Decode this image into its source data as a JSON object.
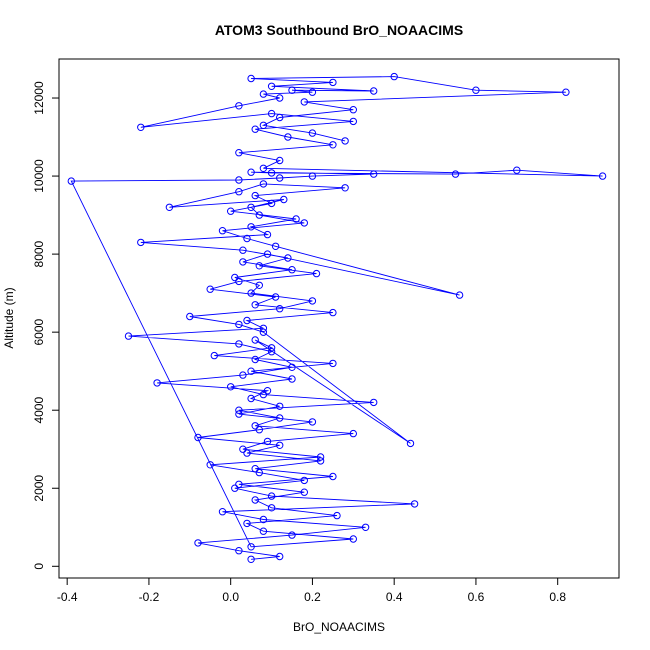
{
  "chart_data": {
    "type": "line",
    "title": "ATOM3 Southbound BrO_NOAACIMS",
    "xlabel": "BrO_NOAACIMS",
    "ylabel": "Altitude (m)",
    "xlim": [
      -0.42,
      0.95
    ],
    "ylim": [
      -300,
      13000
    ],
    "x_ticks": [
      -0.4,
      -0.2,
      0.0,
      0.2,
      0.4,
      0.6,
      0.8
    ],
    "x_tick_labels": [
      "-0.4",
      "-0.2",
      "0.0",
      "0.2",
      "0.4",
      "0.6",
      "0.8"
    ],
    "y_ticks": [
      0,
      2000,
      4000,
      6000,
      8000,
      10000,
      12000
    ],
    "y_tick_labels": [
      "0",
      "2000",
      "4000",
      "6000",
      "8000",
      "10000",
      "12000"
    ],
    "grid": false,
    "legend": "none",
    "markers": "open-circle",
    "color": "#0000ff",
    "series": [
      {
        "x": [
          0.05,
          0.12,
          0.02,
          -0.08,
          0.15,
          0.33,
          0.08,
          -0.02,
          0.45,
          0.1,
          0.01,
          0.18,
          0.07,
          -0.05,
          0.22,
          0.03,
          0.09,
          0.3,
          0.06,
          0.12,
          0.02,
          0.35,
          0.08,
          0.0,
          0.15,
          0.05,
          0.25,
          -0.04,
          0.1,
          0.06,
          0.44,
          0.08,
          0.02,
          -0.1,
          0.12,
          0.2,
          0.05,
          0.07,
          0.01,
          0.15,
          0.03,
          0.09,
          0.56,
          0.11,
          0.04,
          -0.02,
          0.18,
          0.07,
          0.05,
          0.13,
          -0.15,
          0.02,
          0.08,
          0.28,
          0.06,
          0.1,
          0.0,
          0.16,
          0.05,
          0.09,
          -0.22,
          0.03,
          0.14,
          0.07,
          0.21,
          0.02,
          -0.05,
          0.11,
          0.06,
          0.25,
          0.04,
          0.08,
          -0.25,
          0.02,
          0.1,
          0.06,
          0.15,
          0.03,
          -0.18,
          0.09,
          0.05,
          0.12,
          0.02,
          0.2,
          0.07,
          -0.08,
          0.12,
          0.04,
          0.22,
          0.06,
          0.25,
          0.02,
          0.18,
          0.06,
          0.1,
          0.26,
          0.04,
          0.08,
          0.3,
          0.05,
          -0.39,
          0.02,
          0.12,
          0.2,
          0.35,
          0.05,
          0.1,
          0.55,
          0.7,
          0.91,
          0.08,
          0.12,
          0.02,
          0.25,
          0.14,
          0.06,
          0.3,
          0.1,
          -0.22,
          0.02,
          0.12,
          0.08,
          0.2,
          0.15,
          0.35,
          0.1,
          0.25,
          0.05,
          0.4,
          0.6,
          0.82,
          0.18,
          0.3,
          0.12,
          0.08,
          0.2,
          0.28
        ],
        "y": [
          180,
          250,
          400,
          600,
          800,
          1000,
          1200,
          1400,
          1600,
          1800,
          2000,
          2200,
          2400,
          2600,
          2800,
          3000,
          3200,
          3400,
          3600,
          3800,
          4000,
          4200,
          4400,
          4600,
          4800,
          5000,
          5200,
          5400,
          5600,
          5800,
          3150,
          6000,
          6200,
          6400,
          6600,
          6800,
          7000,
          7200,
          7400,
          7600,
          7800,
          8000,
          6950,
          8200,
          8400,
          8600,
          8800,
          9000,
          9200,
          9400,
          9200,
          9600,
          9800,
          9700,
          9500,
          9300,
          9100,
          8900,
          8700,
          8500,
          8300,
          8100,
          7900,
          7700,
          7500,
          7300,
          7100,
          6900,
          6700,
          6500,
          6300,
          6100,
          5900,
          5700,
          5500,
          5300,
          5100,
          4900,
          4700,
          4500,
          4300,
          4100,
          3900,
          3700,
          3500,
          3300,
          3100,
          2900,
          2700,
          2500,
          2300,
          2100,
          1900,
          1700,
          1500,
          1300,
          1100,
          900,
          700,
          500,
          9870,
          9900,
          9950,
          10000,
          10050,
          10100,
          10080,
          10050,
          10150,
          10000,
          10200,
          10400,
          10600,
          10800,
          11000,
          11200,
          11400,
          11600,
          11250,
          11800,
          12000,
          12100,
          12150,
          12200,
          12180,
          12300,
          12400,
          12500,
          12550,
          12200,
          12150,
          11900,
          11700,
          11500,
          11300,
          11100,
          10900
        ]
      }
    ]
  }
}
